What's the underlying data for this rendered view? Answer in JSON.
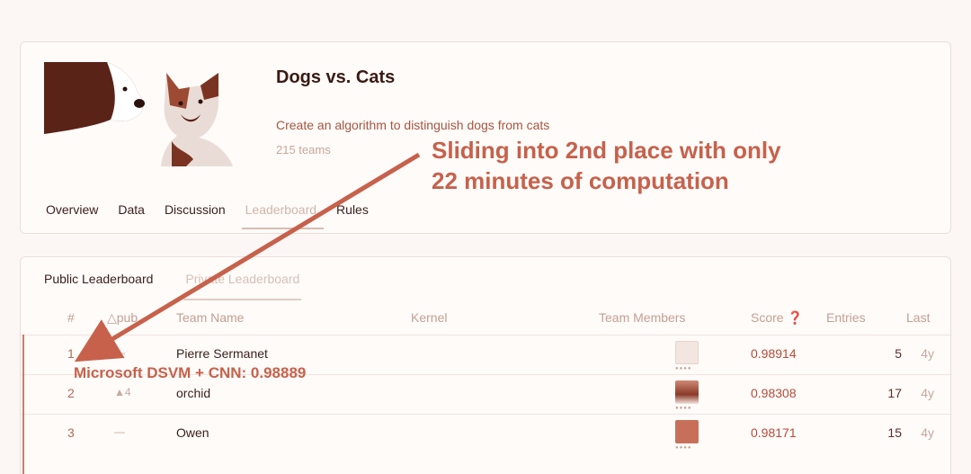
{
  "competition": {
    "title": "Dogs vs. Cats",
    "description": "Create an algorithm to distinguish dogs from cats",
    "teams": "215 teams"
  },
  "nav": {
    "tabs": [
      "Overview",
      "Data",
      "Discussion",
      "Leaderboard",
      "Rules"
    ],
    "active": "Leaderboard"
  },
  "leaderboard": {
    "tabs": {
      "public": "Public Leaderboard",
      "private": "Private Leaderboard"
    },
    "columns": {
      "rank": "#",
      "delta": "△pub",
      "team": "Team Name",
      "kernel": "Kernel",
      "members": "Team Members",
      "score": "Score ❓",
      "entries": "Entries",
      "last": "Last"
    },
    "rows": [
      {
        "rank": "1",
        "delta": "—",
        "team": "Pierre Sermanet",
        "score": "0.98914",
        "entries": "5",
        "last": "4y"
      },
      {
        "rank": "2",
        "delta": "▲4",
        "team": "orchid",
        "score": "0.98308",
        "entries": "17",
        "last": "4y"
      },
      {
        "rank": "3",
        "delta": "—",
        "team": "Owen",
        "score": "0.98171",
        "entries": "15",
        "last": "4y"
      }
    ]
  },
  "annotations": {
    "callout_line1": "Sliding into 2nd place with only",
    "callout_line2": "22 minutes of computation",
    "dsvm": "Microsoft DSVM + CNN: 0.98889"
  },
  "colors": {
    "accent": "#c7614b",
    "score": "#b84a36",
    "muted": "#c49f93"
  }
}
